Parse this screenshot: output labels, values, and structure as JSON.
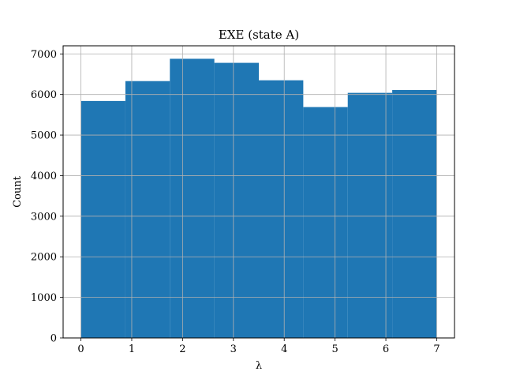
{
  "chart_data": {
    "type": "bar",
    "title": "EXE (state A)",
    "xlabel": "λ",
    "ylabel": "Count",
    "bin_edges": [
      0,
      0.875,
      1.75,
      2.625,
      3.5,
      4.375,
      5.25,
      6.125,
      7
    ],
    "values": [
      5840,
      6330,
      6880,
      6780,
      6350,
      5690,
      6040,
      6110
    ],
    "xlim": [
      -0.35,
      7.35
    ],
    "ylim": [
      0,
      7200
    ],
    "xticks": [
      0,
      1,
      2,
      3,
      4,
      5,
      6,
      7
    ],
    "yticks": [
      0,
      1000,
      2000,
      3000,
      4000,
      5000,
      6000,
      7000
    ],
    "grid": true,
    "bar_color": "#1f77b4",
    "grid_color": "#b0b0b0"
  }
}
